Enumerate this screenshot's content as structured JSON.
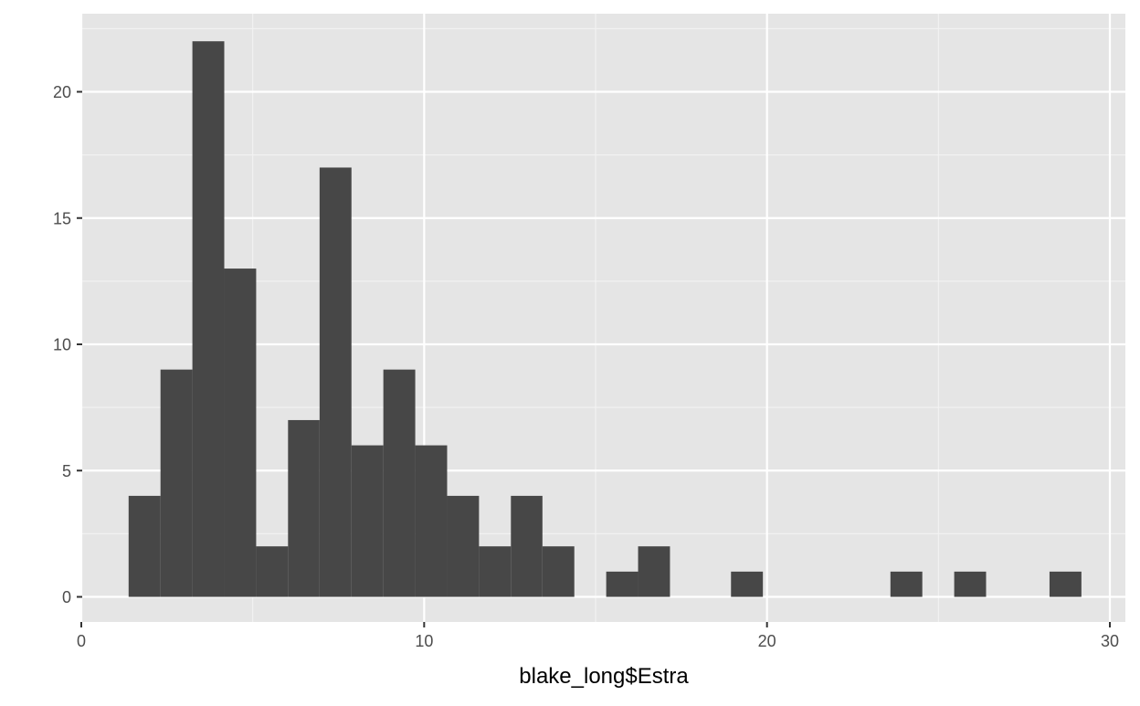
{
  "chart_data": {
    "type": "bar",
    "subtype": "histogram",
    "title": "",
    "xlabel": "blake_long$Estra",
    "ylabel": "",
    "xlim": [
      0,
      30
    ],
    "ylim": [
      0,
      22
    ],
    "grid": true,
    "legend": "none",
    "x_ticks": [
      {
        "value": 0,
        "label": "0"
      },
      {
        "value": 10,
        "label": "10"
      },
      {
        "value": 20,
        "label": "20"
      },
      {
        "value": 30,
        "label": "30"
      }
    ],
    "y_ticks": [
      {
        "value": 0,
        "label": "0"
      },
      {
        "value": 5,
        "label": "5"
      },
      {
        "value": 10,
        "label": "10"
      },
      {
        "value": 15,
        "label": "15"
      },
      {
        "value": 20,
        "label": "20"
      }
    ],
    "bins": [
      {
        "x0": 1.38,
        "x1": 2.31,
        "count": 4
      },
      {
        "x0": 2.31,
        "x1": 3.24,
        "count": 9
      },
      {
        "x0": 3.24,
        "x1": 4.17,
        "count": 22
      },
      {
        "x0": 4.17,
        "x1": 5.1,
        "count": 13
      },
      {
        "x0": 5.1,
        "x1": 6.03,
        "count": 2
      },
      {
        "x0": 6.03,
        "x1": 6.95,
        "count": 7
      },
      {
        "x0": 6.95,
        "x1": 7.88,
        "count": 17
      },
      {
        "x0": 7.88,
        "x1": 8.81,
        "count": 6
      },
      {
        "x0": 8.81,
        "x1": 9.74,
        "count": 9
      },
      {
        "x0": 9.74,
        "x1": 10.67,
        "count": 6
      },
      {
        "x0": 10.67,
        "x1": 11.6,
        "count": 4
      },
      {
        "x0": 11.6,
        "x1": 12.53,
        "count": 2
      },
      {
        "x0": 12.53,
        "x1": 13.45,
        "count": 4
      },
      {
        "x0": 13.45,
        "x1": 14.38,
        "count": 2
      },
      {
        "x0": 15.31,
        "x1": 16.24,
        "count": 1
      },
      {
        "x0": 16.24,
        "x1": 17.17,
        "count": 2
      },
      {
        "x0": 18.95,
        "x1": 19.88,
        "count": 1
      },
      {
        "x0": 23.6,
        "x1": 24.53,
        "count": 1
      },
      {
        "x0": 25.46,
        "x1": 26.39,
        "count": 1
      },
      {
        "x0": 28.24,
        "x1": 29.17,
        "count": 1
      }
    ],
    "colors": {
      "panel_background": "#e5e5e5",
      "grid_major": "#ffffff",
      "grid_minor": "#f2f2f2",
      "bar_fill": "#474747",
      "tick_color": "#333333",
      "tick_label": "#4d4d4d",
      "axis_title": "#000000"
    }
  }
}
